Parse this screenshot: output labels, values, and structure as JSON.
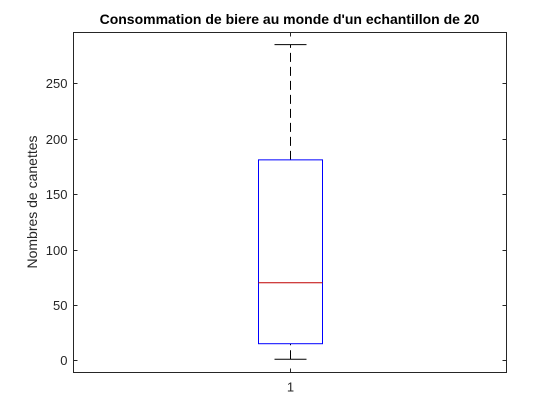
{
  "chart_data": {
    "type": "box",
    "title": "Consommation de biere au monde d'un echantillon de 20",
    "xlabel": "",
    "ylabel": "Nombres de canettes",
    "categories": [
      "1"
    ],
    "ylim": [
      -11,
      296
    ],
    "yticks": [
      0,
      50,
      100,
      150,
      200,
      250
    ],
    "ytick_labels": [
      "0",
      "50",
      "100",
      "150",
      "200",
      "250"
    ],
    "grid": false,
    "boxes": [
      {
        "category": "1",
        "whisker_low": 1,
        "q1": 15,
        "median": 70,
        "q3": 181,
        "whisker_high": 285
      }
    ],
    "colors": {
      "box": "#0000ff",
      "median": "#bf0000",
      "whisker": "#000000",
      "axes": "#262626"
    }
  }
}
